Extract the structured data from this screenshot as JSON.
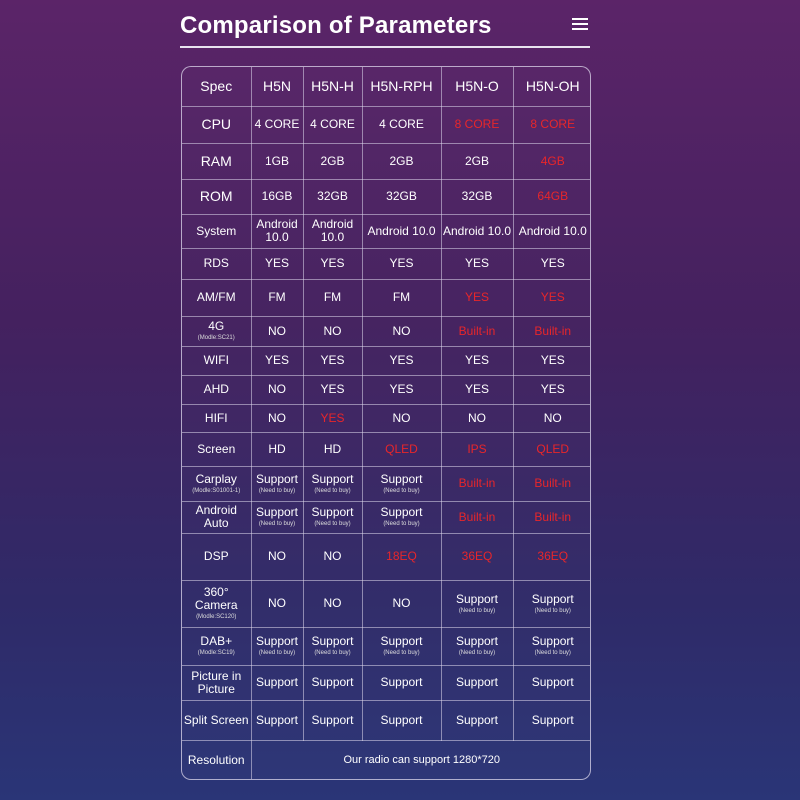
{
  "page": {
    "title": "Comparison of Parameters"
  },
  "table": {
    "headers": [
      "Spec",
      "H5N",
      "H5N-H",
      "H5N-RPH",
      "H5N-O",
      "H5N-OH"
    ],
    "rows": [
      {
        "spec": "CPU",
        "sub": "",
        "big": true,
        "cells": [
          {
            "v": "4 CORE"
          },
          {
            "v": "4 CORE"
          },
          {
            "v": "4 CORE"
          },
          {
            "v": "8 CORE",
            "hl": true
          },
          {
            "v": "8 CORE",
            "hl": true
          }
        ]
      },
      {
        "spec": "RAM",
        "sub": "",
        "big": true,
        "cells": [
          {
            "v": "1GB"
          },
          {
            "v": "2GB"
          },
          {
            "v": "2GB"
          },
          {
            "v": "2GB"
          },
          {
            "v": "4GB",
            "hl": true
          }
        ]
      },
      {
        "spec": "ROM",
        "sub": "",
        "big": true,
        "cells": [
          {
            "v": "16GB"
          },
          {
            "v": "32GB"
          },
          {
            "v": "32GB"
          },
          {
            "v": "32GB"
          },
          {
            "v": "64GB",
            "hl": true
          }
        ]
      },
      {
        "spec": "System",
        "sub": "",
        "cells": [
          {
            "v": "Android 10.0"
          },
          {
            "v": "Android 10.0"
          },
          {
            "v": "Android 10.0"
          },
          {
            "v": "Android 10.0"
          },
          {
            "v": "Android 10.0"
          }
        ]
      },
      {
        "spec": "RDS",
        "sub": "",
        "cells": [
          {
            "v": "YES"
          },
          {
            "v": "YES"
          },
          {
            "v": "YES"
          },
          {
            "v": "YES"
          },
          {
            "v": "YES"
          }
        ]
      },
      {
        "spec": "AM/FM",
        "sub": "",
        "cells": [
          {
            "v": "FM"
          },
          {
            "v": "FM"
          },
          {
            "v": "FM"
          },
          {
            "v": "YES",
            "hl": true
          },
          {
            "v": "YES",
            "hl": true
          }
        ]
      },
      {
        "spec": "4G",
        "sub": "(Modle:SC21)",
        "cells": [
          {
            "v": "NO"
          },
          {
            "v": "NO"
          },
          {
            "v": "NO"
          },
          {
            "v": "Built-in",
            "hl": true
          },
          {
            "v": "Built-in",
            "hl": true
          }
        ]
      },
      {
        "spec": "WIFI",
        "sub": "",
        "cells": [
          {
            "v": "YES"
          },
          {
            "v": "YES"
          },
          {
            "v": "YES"
          },
          {
            "v": "YES"
          },
          {
            "v": "YES"
          }
        ]
      },
      {
        "spec": "AHD",
        "sub": "",
        "cells": [
          {
            "v": "NO"
          },
          {
            "v": "YES"
          },
          {
            "v": "YES"
          },
          {
            "v": "YES"
          },
          {
            "v": "YES"
          }
        ]
      },
      {
        "spec": "HIFI",
        "sub": "",
        "cells": [
          {
            "v": "NO"
          },
          {
            "v": "YES",
            "hl": true
          },
          {
            "v": "NO"
          },
          {
            "v": "NO"
          },
          {
            "v": "NO"
          }
        ]
      },
      {
        "spec": "Screen",
        "sub": "",
        "cells": [
          {
            "v": "HD"
          },
          {
            "v": "HD"
          },
          {
            "v": "QLED",
            "hl": true
          },
          {
            "v": "IPS",
            "hl": true
          },
          {
            "v": "QLED",
            "hl": true
          }
        ]
      },
      {
        "spec": "Carplay",
        "sub": "(Modle:S01001-1)",
        "cells": [
          {
            "v": "Support",
            "note": "(Need to buy)"
          },
          {
            "v": "Support",
            "note": "(Need to buy)"
          },
          {
            "v": "Support",
            "note": "(Need to buy)"
          },
          {
            "v": "Built-in",
            "hl": true
          },
          {
            "v": "Built-in",
            "hl": true
          }
        ]
      },
      {
        "spec": "Android Auto",
        "sub": "",
        "cells": [
          {
            "v": "Support",
            "note": "(Need to buy)"
          },
          {
            "v": "Support",
            "note": "(Need to buy)"
          },
          {
            "v": "Support",
            "note": "(Need to buy)"
          },
          {
            "v": "Built-in",
            "hl": true
          },
          {
            "v": "Built-in",
            "hl": true
          }
        ]
      },
      {
        "spec": "DSP",
        "sub": "",
        "cells": [
          {
            "v": "NO"
          },
          {
            "v": "NO"
          },
          {
            "v": "18EQ",
            "hl": true
          },
          {
            "v": "36EQ",
            "hl": true
          },
          {
            "v": "36EQ",
            "hl": true
          }
        ]
      },
      {
        "spec": "360° Camera",
        "sub": "(Modle:SC120)",
        "cells": [
          {
            "v": "NO"
          },
          {
            "v": "NO"
          },
          {
            "v": "NO"
          },
          {
            "v": "Support",
            "note": "(Need to buy)"
          },
          {
            "v": "Support",
            "note": "(Need to buy)"
          }
        ]
      },
      {
        "spec": "DAB+",
        "sub": "(Modle:SC19)",
        "cells": [
          {
            "v": "Support",
            "note": "(Need to buy)"
          },
          {
            "v": "Support",
            "note": "(Need to buy)"
          },
          {
            "v": "Support",
            "note": "(Need to buy)"
          },
          {
            "v": "Support",
            "note": "(Need to buy)"
          },
          {
            "v": "Support",
            "note": "(Need to buy)"
          }
        ]
      },
      {
        "spec": "Picture in Picture",
        "sub": "",
        "cells": [
          {
            "v": "Support"
          },
          {
            "v": "Support"
          },
          {
            "v": "Support"
          },
          {
            "v": "Support"
          },
          {
            "v": "Support"
          }
        ]
      },
      {
        "spec": "Split Screen",
        "sub": "",
        "cells": [
          {
            "v": "Support"
          },
          {
            "v": "Support"
          },
          {
            "v": "Support"
          },
          {
            "v": "Support"
          },
          {
            "v": "Support"
          }
        ]
      }
    ],
    "resolution": {
      "spec": "Resolution",
      "text": "Our radio can support 1280*720"
    }
  },
  "colors": {
    "highlight": "#e8262a",
    "border": "#dcd7eb"
  },
  "icons": {
    "menu": "hamburger-menu-icon"
  }
}
